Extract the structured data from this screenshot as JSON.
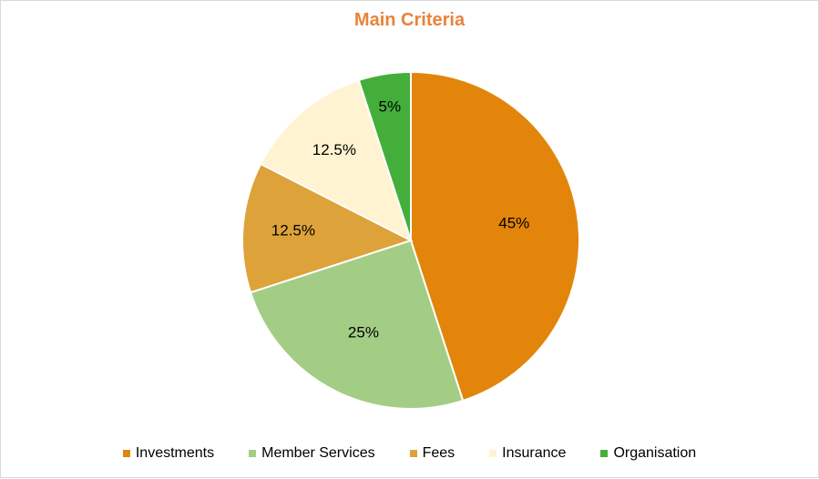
{
  "chart_data": {
    "type": "pie",
    "title": "Main Criteria",
    "categories": [
      "Investments",
      "Member Services",
      "Fees",
      "Insurance",
      "Organisation"
    ],
    "values": [
      45,
      25,
      12.5,
      12.5,
      5
    ],
    "labels": [
      "45%",
      "25%",
      "12.5%",
      "12.5%",
      "5%"
    ],
    "colors": [
      "#E2850A",
      "#A3CD85",
      "#DEA23A",
      "#FFF3D1",
      "#43AF3A"
    ],
    "start_angle": "12 o'clock",
    "direction": "clockwise",
    "legend_position": "bottom"
  }
}
